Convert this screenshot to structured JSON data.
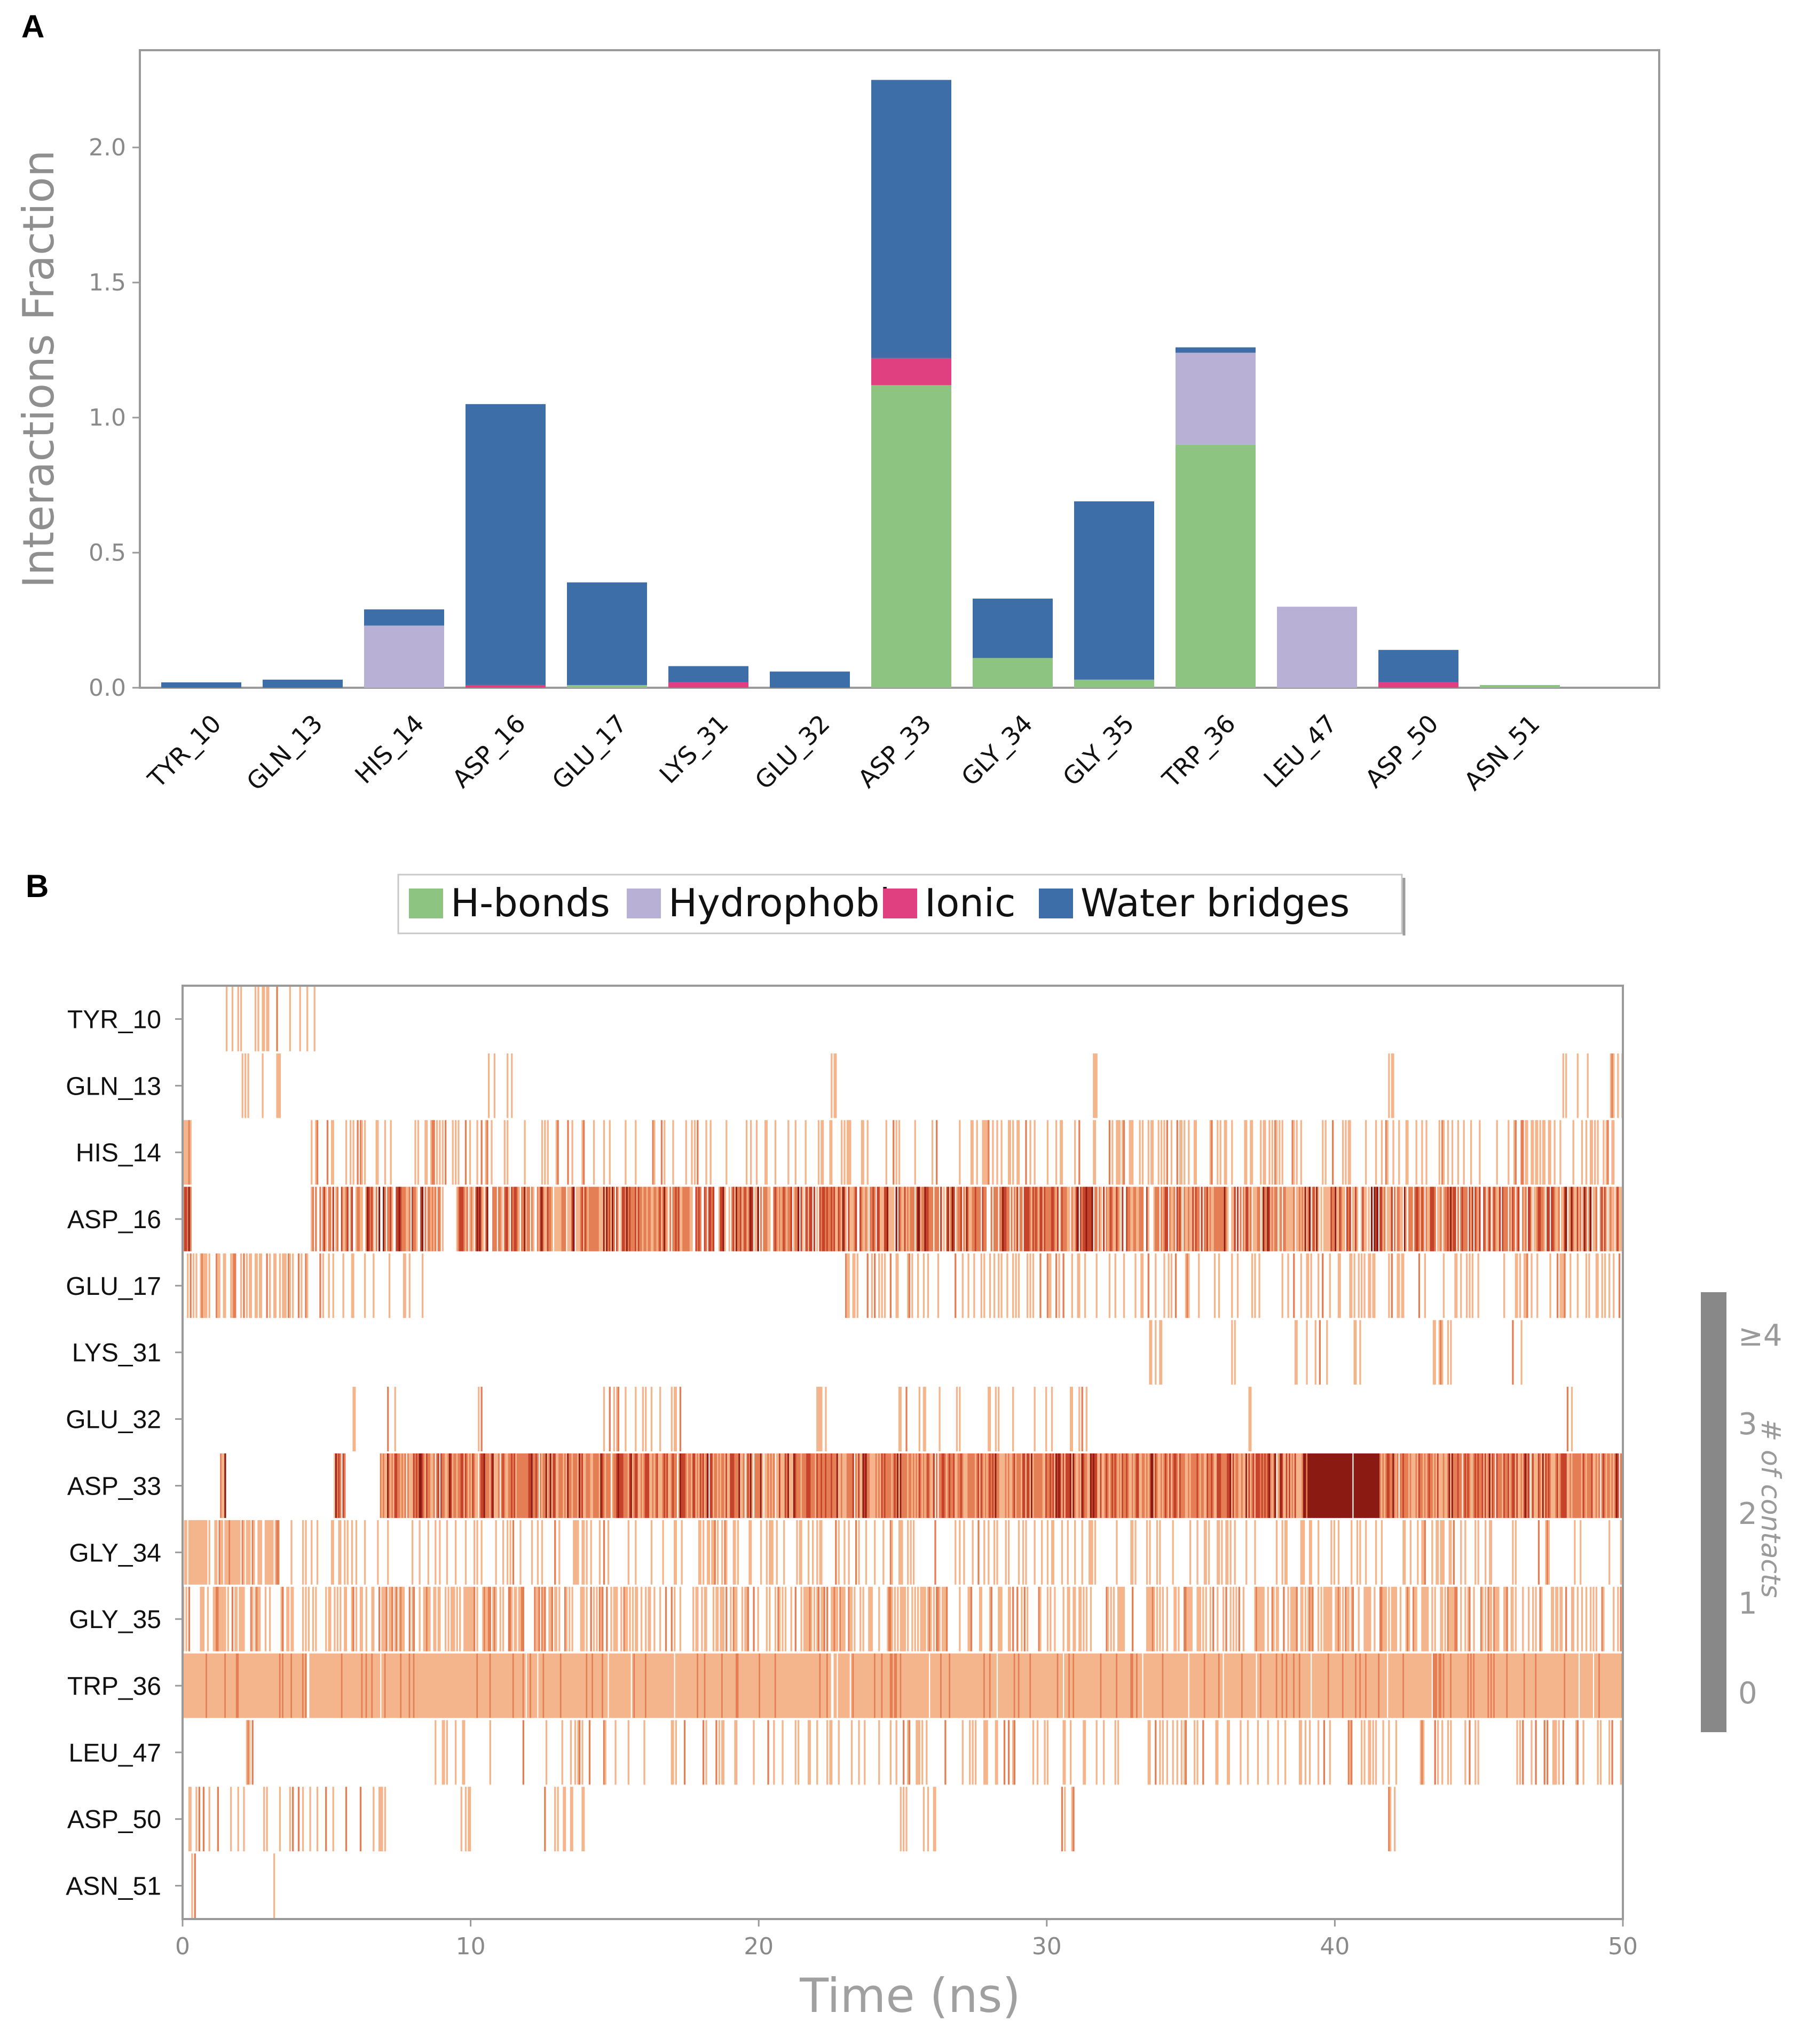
{
  "panels": {
    "a": "A",
    "b": "B"
  },
  "legend": [
    {
      "label": "H-bonds",
      "color": "#8dc482"
    },
    {
      "label": "Hydrophobic",
      "color": "#b9b0d6"
    },
    {
      "label": "Ionic",
      "color": "#e0407f"
    },
    {
      "label": "Water bridges",
      "color": "#3d6ea8"
    }
  ],
  "chart_data": [
    {
      "type": "bar",
      "stacked": true,
      "title": "",
      "xlabel": "",
      "ylabel": "Interactions Fraction",
      "ylim": [
        0,
        2.36
      ],
      "yticks": [
        "0.0",
        "0.5",
        "1.0",
        "1.5",
        "2.0"
      ],
      "categories": [
        "TYR_10",
        "GLN_13",
        "HIS_14",
        "ASP_16",
        "GLU_17",
        "LYS_31",
        "GLU_32",
        "ASP_33",
        "GLY_34",
        "GLY_35",
        "TRP_36",
        "LEU_47",
        "ASP_50",
        "ASN_51"
      ],
      "series": [
        {
          "name": "H-bonds",
          "color": "#8dc482",
          "values": [
            0,
            0,
            0,
            0,
            0.01,
            0,
            0,
            1.12,
            0.11,
            0.03,
            0.9,
            0,
            0,
            0.01
          ]
        },
        {
          "name": "Hydrophobic",
          "color": "#b9b0d6",
          "values": [
            0,
            0,
            0.23,
            0,
            0,
            0,
            0,
            0,
            0,
            0,
            0.34,
            0.3,
            0,
            0
          ]
        },
        {
          "name": "Ionic",
          "color": "#e0407f",
          "values": [
            0,
            0,
            0,
            0.01,
            0,
            0.02,
            0,
            0.1,
            0,
            0,
            0,
            0,
            0.02,
            0
          ]
        },
        {
          "name": "Water bridges",
          "color": "#3d6ea8",
          "values": [
            0.02,
            0.03,
            0.06,
            1.04,
            0.38,
            0.06,
            0.06,
            1.03,
            0.22,
            0.66,
            0.02,
            0,
            0.12,
            0
          ]
        }
      ]
    },
    {
      "type": "heatmap",
      "title": "",
      "xlabel": "Time (ns)",
      "ylabel": "",
      "xlim": [
        0,
        50
      ],
      "xticks": [
        "0",
        "10",
        "20",
        "30",
        "40",
        "50"
      ],
      "rows": [
        "TYR_10",
        "GLN_13",
        "HIS_14",
        "ASP_16",
        "GLU_17",
        "LYS_31",
        "GLU_32",
        "ASP_33",
        "GLY_34",
        "GLY_35",
        "TRP_36",
        "LEU_47",
        "ASP_50",
        "ASN_51"
      ],
      "colorbar": {
        "label": "# of contacts",
        "ticks": [
          "0",
          "1",
          "2",
          "3",
          "≥4"
        ],
        "colors": [
          "#ffffff",
          "#f4b58c",
          "#e47e55",
          "#c6432b",
          "#8b1a12"
        ]
      },
      "density": [
        0.12,
        0.1,
        0.35,
        0.82,
        0.4,
        0.08,
        0.1,
        0.93,
        0.45,
        0.62,
        0.95,
        0.25,
        0.1,
        0.03
      ],
      "row_segments": [
        [
          [
            1.5,
            4.6,
            0.55
          ]
        ],
        [
          [
            1.5,
            4.2,
            0.25
          ],
          [
            10.4,
            11.6,
            0.3
          ],
          [
            22.5,
            22.7,
            1.0
          ],
          [
            31.6,
            31.8,
            1.0
          ],
          [
            41.8,
            42.0,
            1.0
          ],
          [
            47.5,
            50.0,
            0.4
          ]
        ],
        [
          [
            0,
            0.3,
            1.0
          ],
          [
            4.4,
            50,
            0.38
          ]
        ],
        [
          [
            0,
            0.3,
            1.0
          ],
          [
            4.4,
            9,
            0.72
          ],
          [
            9.5,
            23,
            0.92
          ],
          [
            23,
            50,
            0.9
          ]
        ],
        [
          [
            0,
            4.4,
            0.7
          ],
          [
            4.4,
            8.3,
            0.25
          ],
          [
            23,
            50,
            0.38
          ]
        ],
        [
          [
            33.4,
            34.0,
            0.6
          ],
          [
            36.2,
            36.8,
            0.5
          ],
          [
            38.5,
            41.0,
            0.5
          ],
          [
            43.3,
            44.0,
            0.8
          ],
          [
            46.0,
            46.6,
            0.4
          ]
        ],
        [
          [
            5.5,
            6.0,
            0.5
          ],
          [
            7.0,
            8.0,
            0.4
          ],
          [
            10.0,
            10.5,
            0.5
          ],
          [
            14.5,
            17.5,
            0.35
          ],
          [
            22.0,
            22.5,
            0.6
          ],
          [
            24.5,
            31.5,
            0.3
          ],
          [
            37.0,
            37.2,
            1.0
          ],
          [
            48.0,
            48.5,
            0.5
          ]
        ],
        [
          [
            1.3,
            1.5,
            1.0
          ],
          [
            5.2,
            5.6,
            1.0
          ],
          [
            6.8,
            50,
            1.0
          ]
        ],
        [
          [
            0,
            3.3,
            1.0
          ],
          [
            3.3,
            50,
            0.3
          ]
        ],
        [
          [
            0,
            50,
            0.6
          ]
        ],
        [
          [
            0,
            50,
            1.0
          ]
        ],
        [
          [
            2.2,
            2.4,
            1.0
          ],
          [
            8.4,
            50,
            0.3
          ]
        ],
        [
          [
            0,
            7.0,
            0.35
          ],
          [
            9.5,
            10.0,
            0.4
          ],
          [
            12.5,
            14.0,
            0.5
          ],
          [
            24.5,
            26.5,
            0.4
          ],
          [
            30.5,
            31.0,
            0.4
          ],
          [
            41.8,
            42.1,
            1.0
          ]
        ],
        [
          [
            0.3,
            0.5,
            1.0
          ],
          [
            3.0,
            3.2,
            1.0
          ]
        ]
      ]
    }
  ]
}
